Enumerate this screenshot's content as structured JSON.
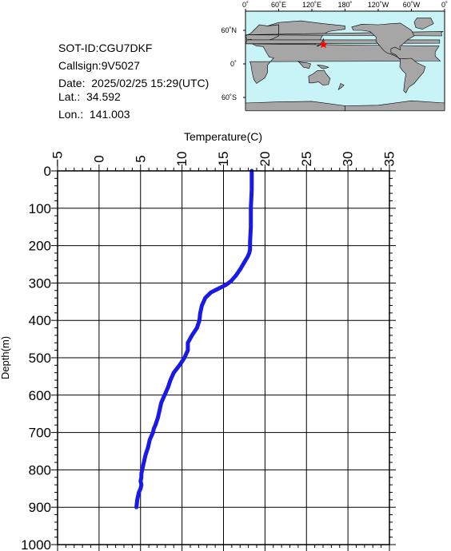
{
  "info": {
    "sot_id": "SOT-ID:CGU7DKF",
    "callsign": "Callsign:9V5027",
    "date": "Date:  2025/02/25 15:29(UTC)",
    "lat": "Lat.:  34.592",
    "lon": "Lon.:  141.003"
  },
  "map": {
    "lon_labels": [
      "0˚",
      "60˚E",
      "120˚E",
      "180˚",
      "120˚W",
      "60˚W",
      "0˚"
    ],
    "lat_labels": [
      "60˚N",
      "0˚",
      "60˚S"
    ],
    "marker": {
      "lat": 34.592,
      "lon": 141.003
    },
    "colors": {
      "ocean": "#c8f4f8",
      "land": "#a6a6a6",
      "marker": "#ff0000"
    }
  },
  "chart_data": {
    "type": "line",
    "xlabel": "Temperature(C)",
    "ylabel": "Depth(m)",
    "xlim": [
      -5,
      35
    ],
    "ylim": [
      1000,
      0
    ],
    "xticks": [
      -5,
      0,
      5,
      10,
      15,
      20,
      25,
      30,
      35
    ],
    "yticks": [
      0,
      100,
      200,
      300,
      400,
      500,
      600,
      700,
      800,
      900,
      1000
    ],
    "grid": true,
    "line_color": "#1a1ae6",
    "series": [
      {
        "x": [
          18.4,
          18.4,
          18.3,
          18.3,
          18.2,
          18.2,
          18.1,
          17.9,
          17.5,
          17.1,
          16.8,
          16.5,
          15.9,
          15.3,
          14.4,
          13.5,
          12.8,
          12.4,
          12.2,
          12.1,
          11.8,
          11.2,
          10.7,
          10.7,
          10.3,
          9.7,
          9.0,
          8.6,
          8.3,
          7.9,
          7.5,
          7.3,
          7.1,
          6.8,
          6.6,
          6.5,
          6.3,
          6.1,
          5.9,
          5.6,
          5.4,
          5.2,
          5.1,
          5.1,
          5.0,
          5.1,
          5.0,
          4.8,
          4.6,
          4.5
        ],
        "y": [
          0,
          50,
          100,
          150,
          190,
          210,
          220,
          230,
          245,
          260,
          270,
          280,
          295,
          305,
          315,
          325,
          340,
          360,
          380,
          400,
          420,
          440,
          460,
          480,
          500,
          520,
          540,
          560,
          580,
          600,
          620,
          640,
          660,
          680,
          690,
          700,
          710,
          720,
          740,
          760,
          780,
          800,
          810,
          820,
          830,
          840,
          850,
          860,
          880,
          900
        ]
      }
    ]
  }
}
